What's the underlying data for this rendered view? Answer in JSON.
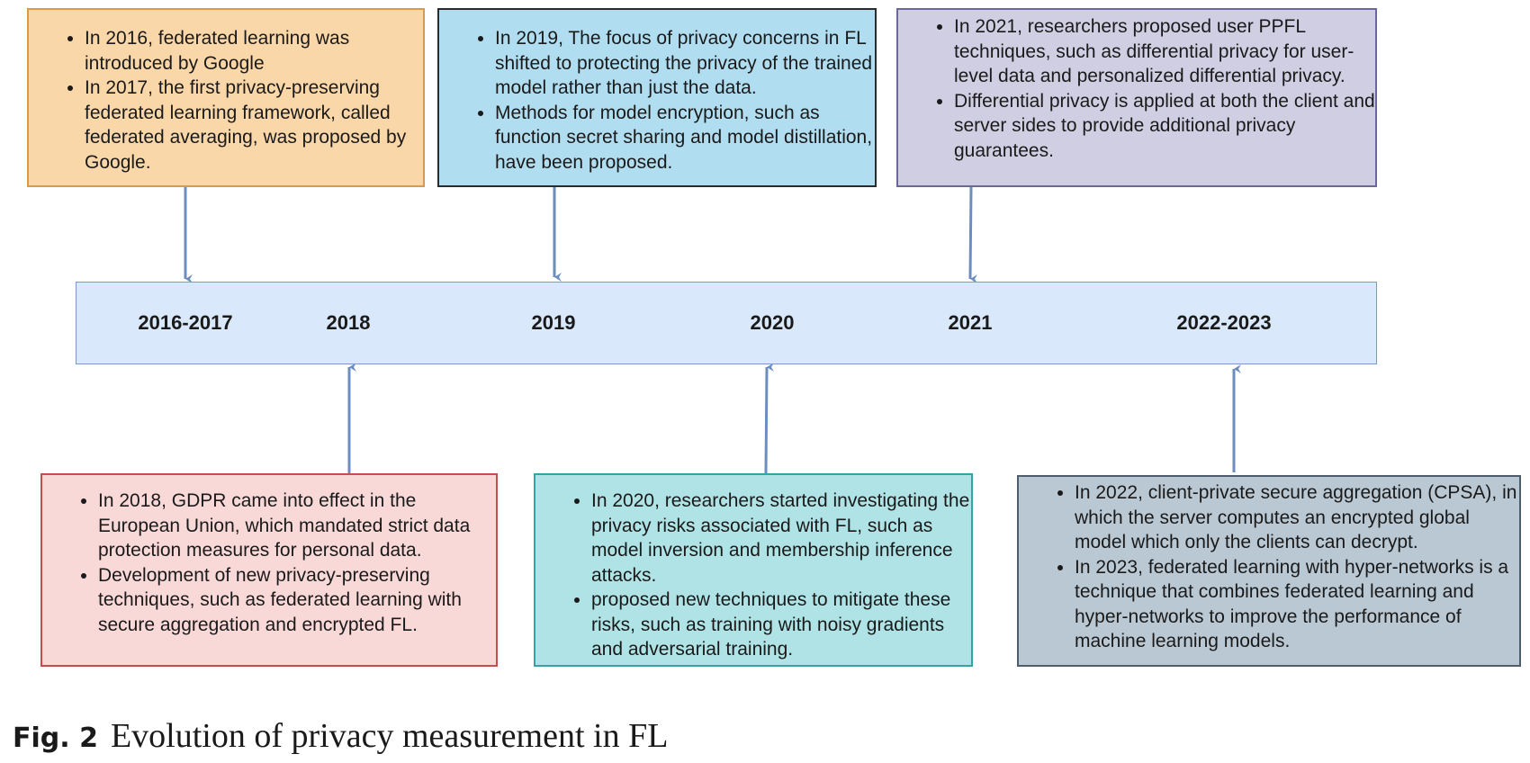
{
  "timeline": {
    "years": [
      "2016-2017",
      "2018",
      "2019",
      "2020",
      "2021",
      "2022-2023"
    ]
  },
  "boxes": {
    "b2016": {
      "items": [
        "In 2016, federated learning was introduced by Google",
        "In 2017, the first privacy-preserving federated learning framework, called federated averaging, was proposed by Google."
      ]
    },
    "b2019": {
      "items": [
        "In 2019, The focus of privacy concerns in FL shifted to protecting the privacy of the trained model rather than just the data.",
        "Methods for model encryption, such as function secret sharing and model distillation, have been proposed."
      ]
    },
    "b2021": {
      "items": [
        "In 2021, researchers proposed user PPFL techniques, such as differential privacy for user-level data and personalized differential privacy.",
        "Differential privacy is applied at both the client and server sides to provide additional privacy guarantees."
      ]
    },
    "b2018": {
      "items": [
        "In 2018, GDPR came into effect in the European Union, which mandated strict data protection measures for personal data.",
        "Development of new privacy-preserving techniques, such as federated learning with secure aggregation and encrypted FL."
      ]
    },
    "b2020": {
      "items": [
        "In 2020, researchers started investigating the privacy risks associated with FL, such as model inversion and membership inference attacks.",
        "proposed new techniques to mitigate these risks, such as training with noisy gradients and adversarial training."
      ]
    },
    "b2022": {
      "items": [
        "In 2022, client-private secure aggregation (CPSA), in which the server computes an encrypted global model which only the clients can decrypt.",
        "In 2023, federated learning with hyper-networks is a technique that combines federated learning and hyper-networks to improve the performance of machine learning models."
      ]
    }
  },
  "caption": {
    "label": "Fig. 2",
    "text": "Evolution of privacy measurement in FL"
  },
  "colors": {
    "arrow": "#6c8ebf",
    "bar_fill": "#dae8fc"
  }
}
